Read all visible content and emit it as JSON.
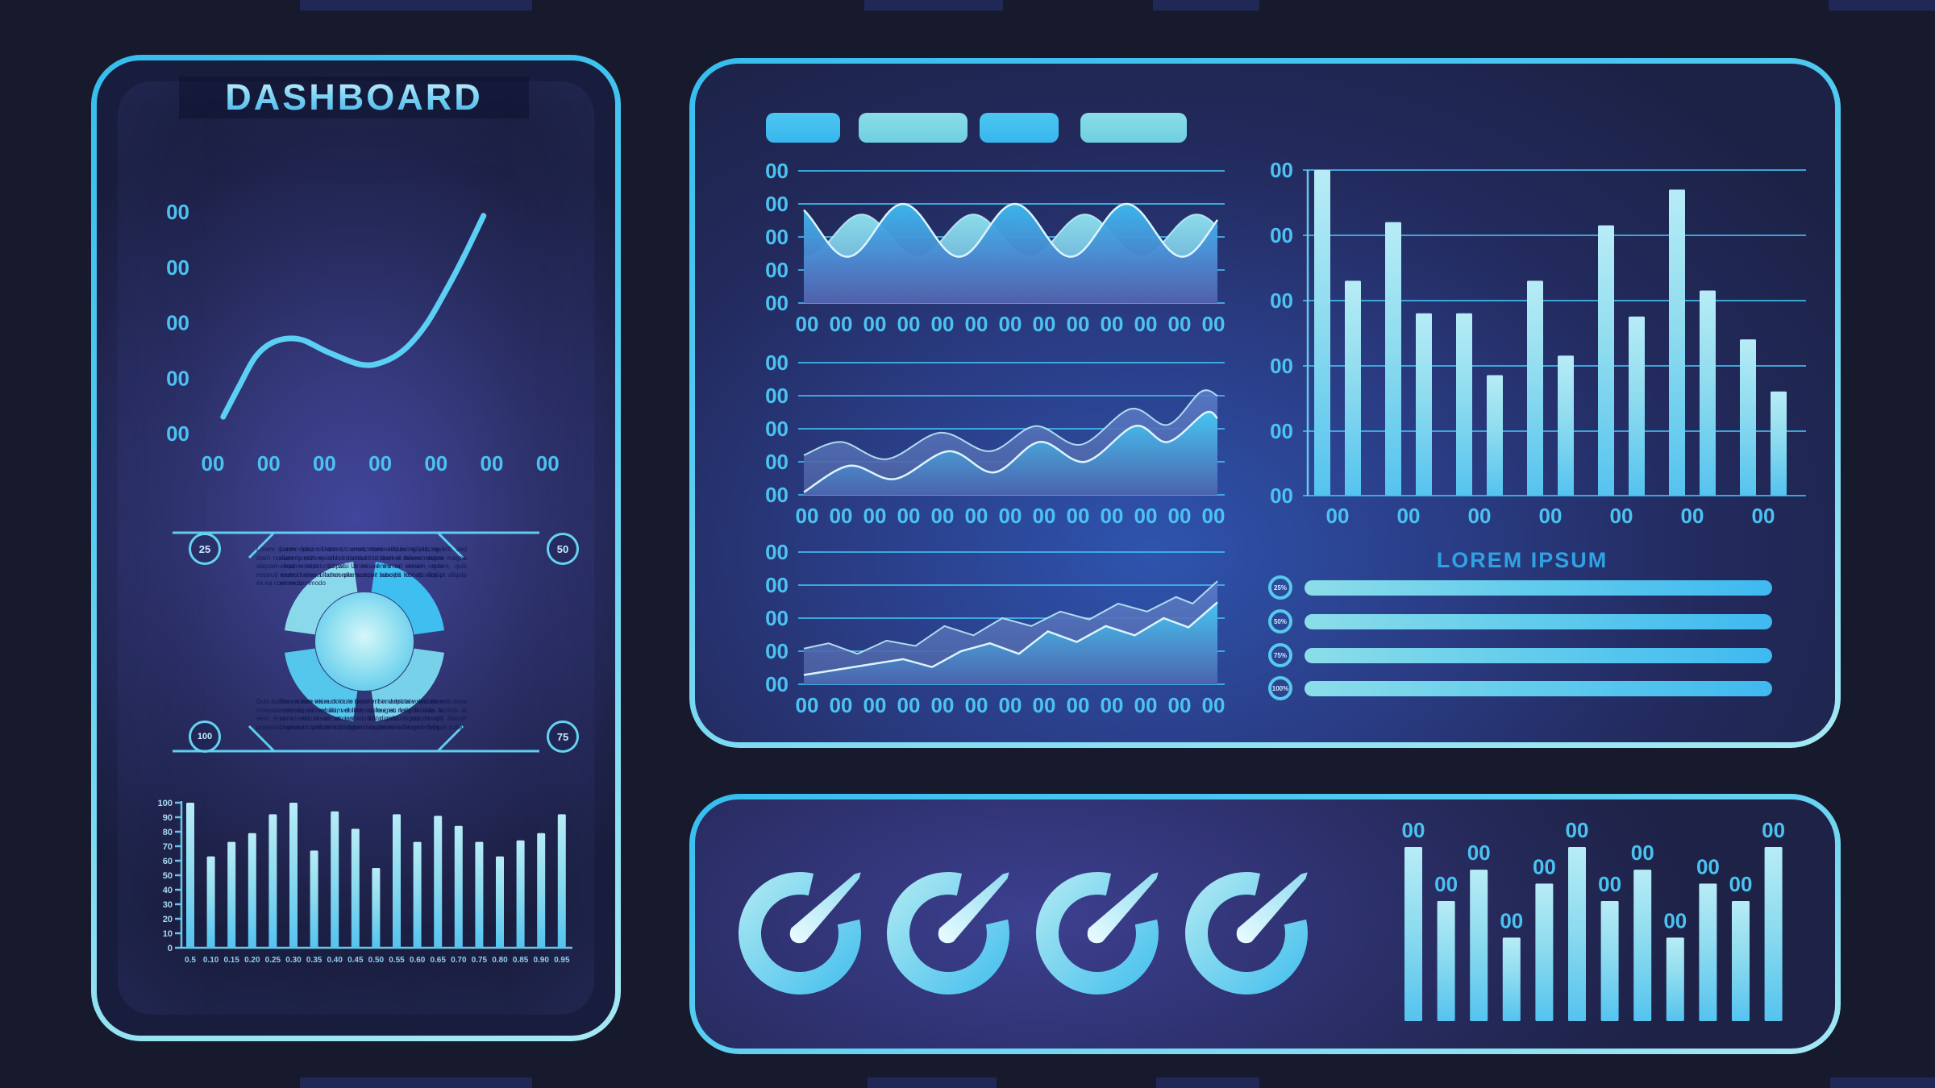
{
  "colors": {
    "background": "#161a2c",
    "panel_border_accent": "#45c6f1",
    "accent_blue": "#3fbfef",
    "accent_teal": "#84d8e9",
    "label_blue": "#4cc2f1",
    "dark_callout_text": "#0e1a4e"
  },
  "left_panel": {
    "title": "DASHBOARD",
    "donut_callouts": [
      {
        "position": "top-left",
        "value": "25",
        "text": "Lorem ipsum dolor sit amet, consectetuer adipiscing elit, sed diam nonummy nibh euismod tincidunt ut laoreet dolore magna aliquam erat volutpat. Ut wisi enim ad minim veniam, quis nostrud exerci tation ullamcorper suscipit lobortis nisl ut aliquip ex ea commodo"
      },
      {
        "position": "top-right",
        "value": "50",
        "text": "Lorem ipsum dolor sit amet, consectetuer adipiscing elit, sed diam nonummy nibh euismod tincidunt ut laoreet dolore magna aliquam erat volutpat. Ut wisi enim ad minim veniam, quis nostrud exerci tation ullamcorper suscipit lobortis nisl ut aliquip ex ea commodo"
      },
      {
        "position": "bottom-left",
        "value": "100",
        "text": "Duis autem vel eum iriure dolor in hendrerit in vulputate velit esse molestie consequat, vel illum dolore eu feugiat nulla facilisis at vero eros et accumsan et iusto odio dignissim qui blandit praesent luptatum zzril delenit augue duis dolore te feugait nulla"
      },
      {
        "position": "bottom-right",
        "value": "75",
        "text": "Duis autem vel eum iriure dolor in hendrerit in vulputate velit esse molestie consequat, vel illum dolore eu feugiat nulla facilisis at vero eros et accumsan et iusto odio dignissim qui blandit praesent luptatum zzril delenit augue duis dolore te feugait nulla"
      }
    ]
  },
  "main_panel": {
    "lorem_title": "LOREM IPSUM",
    "progress_badges": [
      "25%",
      "50%",
      "75%",
      "100%"
    ]
  },
  "chart_data": [
    {
      "id": "left-line",
      "type": "line",
      "title": "",
      "y_labels": [
        "00",
        "00",
        "00",
        "00",
        "00"
      ],
      "x_labels": [
        "00",
        "00",
        "00",
        "00",
        "00",
        "00",
        "00"
      ],
      "ylim": [
        0,
        100
      ],
      "points": [
        [
          2,
          3
        ],
        [
          8,
          18
        ],
        [
          14,
          32
        ],
        [
          21,
          39
        ],
        [
          30,
          40
        ],
        [
          40,
          34
        ],
        [
          52,
          28
        ],
        [
          60,
          29
        ],
        [
          68,
          35
        ],
        [
          76,
          47
        ],
        [
          84,
          65
        ],
        [
          90,
          80
        ],
        [
          97,
          99
        ]
      ]
    },
    {
      "id": "left-donut",
      "type": "pie",
      "slices": [
        {
          "label": "25",
          "value": 25,
          "position": "top-left"
        },
        {
          "label": "50",
          "value": 50,
          "position": "top-right"
        },
        {
          "label": "75",
          "value": 75,
          "position": "bottom-right"
        },
        {
          "label": "100",
          "value": 100,
          "position": "bottom-left"
        }
      ]
    },
    {
      "id": "left-bars",
      "type": "bar",
      "y_ticks": [
        "100",
        "90",
        "80",
        "70",
        "60",
        "50",
        "40",
        "30",
        "20",
        "10",
        "0"
      ],
      "x_labels": [
        "0.5",
        "0.10",
        "0.15",
        "0.20",
        "0.25",
        "0.30",
        "0.35",
        "0.40",
        "0.45",
        "0.50",
        "0.55",
        "0.60",
        "0.65",
        "0.70",
        "0.75",
        "0.80",
        "0.85",
        "0.90",
        "0.95"
      ],
      "values": [
        100,
        63,
        73,
        79,
        92,
        100,
        67,
        94,
        82,
        55,
        92,
        73,
        91,
        84,
        73,
        63,
        74,
        79,
        92
      ],
      "ylim": [
        0,
        100
      ]
    },
    {
      "id": "wave-1",
      "type": "area",
      "y_labels": [
        "00",
        "00",
        "00",
        "00",
        "00"
      ],
      "x_labels": [
        "00",
        "00",
        "00",
        "00",
        "00",
        "00",
        "00",
        "00",
        "00",
        "00",
        "00",
        "00",
        "00"
      ],
      "series": [
        {
          "name": "back-wave",
          "wave": {
            "base": 51,
            "amp": 16,
            "period": 27,
            "peak_at": 14
          }
        },
        {
          "name": "front-wave",
          "wave": {
            "base": 55,
            "amp": 20,
            "period": 27,
            "peak_at": 24
          }
        }
      ]
    },
    {
      "id": "wave-2",
      "type": "area",
      "y_labels": [
        "00",
        "00",
        "00",
        "00",
        "00"
      ],
      "x_labels": [
        "00",
        "00",
        "00",
        "00",
        "00",
        "00",
        "00",
        "00",
        "00",
        "00",
        "00",
        "00",
        "00"
      ],
      "series": [
        {
          "name": "back-wave",
          "smooth": true,
          "points": [
            [
              0,
              30
            ],
            [
              9,
              40
            ],
            [
              20,
              27
            ],
            [
              33,
              47
            ],
            [
              45,
              33
            ],
            [
              56,
              52
            ],
            [
              67,
              38
            ],
            [
              79,
              65
            ],
            [
              88,
              53
            ],
            [
              96,
              78
            ],
            [
              100,
              75
            ]
          ]
        },
        {
          "name": "front-wave",
          "smooth": true,
          "points": [
            [
              0,
              2
            ],
            [
              11,
              22
            ],
            [
              22,
              12
            ],
            [
              35,
              33
            ],
            [
              46,
              17
            ],
            [
              57,
              40
            ],
            [
              68,
              25
            ],
            [
              80,
              52
            ],
            [
              88,
              40
            ],
            [
              97,
              62
            ],
            [
              100,
              58
            ]
          ]
        }
      ]
    },
    {
      "id": "area-3",
      "type": "area",
      "y_labels": [
        "00",
        "00",
        "00",
        "00",
        "00"
      ],
      "x_labels": [
        "00",
        "00",
        "00",
        "00",
        "00",
        "00",
        "00",
        "00",
        "00",
        "00",
        "00",
        "00",
        "00"
      ],
      "series": [
        {
          "name": "back-area",
          "smooth": false,
          "points": [
            [
              0,
              27
            ],
            [
              6,
              31
            ],
            [
              13,
              23
            ],
            [
              20,
              33
            ],
            [
              27,
              29
            ],
            [
              34,
              44
            ],
            [
              41,
              37
            ],
            [
              48,
              50
            ],
            [
              55,
              44
            ],
            [
              62,
              55
            ],
            [
              69,
              49
            ],
            [
              76,
              61
            ],
            [
              83,
              55
            ],
            [
              90,
              66
            ],
            [
              94,
              61
            ],
            [
              100,
              78
            ]
          ]
        },
        {
          "name": "front-area",
          "smooth": false,
          "points": [
            [
              0,
              7
            ],
            [
              8,
              11
            ],
            [
              16,
              15
            ],
            [
              24,
              19
            ],
            [
              31,
              13
            ],
            [
              38,
              25
            ],
            [
              45,
              31
            ],
            [
              52,
              23
            ],
            [
              59,
              40
            ],
            [
              66,
              32
            ],
            [
              73,
              44
            ],
            [
              80,
              37
            ],
            [
              87,
              50
            ],
            [
              93,
              43
            ],
            [
              100,
              62
            ]
          ]
        }
      ]
    },
    {
      "id": "main-bars",
      "type": "bar",
      "y_labels": [
        "00",
        "00",
        "00",
        "00",
        "00",
        "00"
      ],
      "x_labels": [
        "00",
        "00",
        "00",
        "00",
        "00",
        "00",
        "00"
      ],
      "values": [
        100,
        66,
        84,
        56,
        56,
        37,
        66,
        43,
        83,
        55,
        94,
        63,
        48,
        32
      ],
      "ylim": [
        0,
        100
      ]
    },
    {
      "id": "bottom-bars",
      "type": "bar",
      "bar_labels": [
        "00",
        "00",
        "00",
        "00",
        "00",
        "00",
        "00",
        "00",
        "00",
        "00",
        "00",
        "00"
      ],
      "values": [
        100,
        69,
        87,
        48,
        79,
        100,
        69,
        87,
        48,
        79,
        69,
        100
      ],
      "ylim": [
        0,
        100
      ]
    }
  ]
}
